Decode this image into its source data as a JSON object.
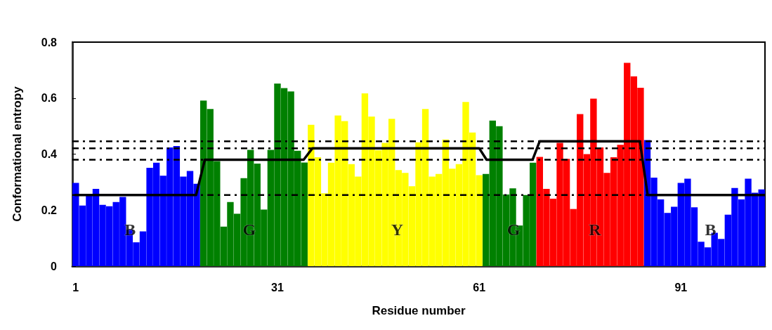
{
  "chart_data": {
    "type": "bar",
    "xlabel": "Residue number",
    "ylabel": "Conformational entropy",
    "xlim": [
      0.5,
      103.5
    ],
    "xticks": [
      1,
      31,
      61,
      91
    ],
    "ylim": [
      0,
      0.8
    ],
    "yticks": [
      0,
      0.2,
      0.4,
      0.6,
      0.8
    ],
    "grid": false,
    "marker": "none",
    "series": [
      {
        "x": [
          1,
          2,
          3,
          4,
          5,
          6,
          7,
          8,
          9,
          10,
          11,
          12,
          13,
          14,
          15,
          16,
          17,
          18,
          19,
          20,
          21,
          22,
          23,
          24,
          25,
          26,
          27,
          28,
          29,
          30,
          31,
          32,
          33,
          34,
          35,
          36,
          37,
          38,
          39,
          40,
          41,
          42,
          43,
          44,
          45,
          46,
          47,
          48,
          49,
          50,
          51,
          52,
          53,
          54,
          55,
          56,
          57,
          58,
          59,
          60,
          61,
          62,
          63,
          64,
          65,
          66,
          67,
          68,
          69,
          70,
          71,
          72,
          73,
          74,
          75,
          76,
          77,
          78,
          79,
          80,
          81,
          82,
          83,
          84,
          85,
          86,
          87,
          88,
          89,
          90,
          91,
          92,
          93,
          94,
          95,
          96,
          97,
          98,
          99,
          100,
          101,
          102,
          103
        ],
        "values": [
          0.297,
          0.216,
          0.256,
          0.276,
          0.219,
          0.214,
          0.229,
          0.247,
          0.13,
          0.085,
          0.124,
          0.351,
          0.369,
          0.323,
          0.424,
          0.429,
          0.32,
          0.34,
          0.294,
          0.591,
          0.561,
          0.375,
          0.141,
          0.229,
          0.187,
          0.314,
          0.415,
          0.366,
          0.202,
          0.415,
          0.652,
          0.636,
          0.624,
          0.412,
          0.37,
          0.505,
          0.389,
          0.26,
          0.369,
          0.538,
          0.518,
          0.364,
          0.32,
          0.617,
          0.534,
          0.414,
          0.44,
          0.526,
          0.343,
          0.333,
          0.285,
          0.442,
          0.561,
          0.32,
          0.329,
          0.452,
          0.348,
          0.364,
          0.586,
          0.477,
          0.325,
          0.329,
          0.52,
          0.5,
          0.256,
          0.278,
          0.145,
          0.254,
          0.369,
          0.39,
          0.276,
          0.241,
          0.44,
          0.383,
          0.204,
          0.543,
          0.4,
          0.598,
          0.424,
          0.333,
          0.389,
          0.433,
          0.726,
          0.678,
          0.637,
          0.45,
          0.316,
          0.238,
          0.19,
          0.212,
          0.297,
          0.312,
          0.21,
          0.087,
          0.067,
          0.119,
          0.097,
          0.184,
          0.279,
          0.238,
          0.312,
          0.262,
          0.274
        ],
        "colors": [
          "#0000ff",
          "#0000ff",
          "#0000ff",
          "#0000ff",
          "#0000ff",
          "#0000ff",
          "#0000ff",
          "#0000ff",
          "#0000ff",
          "#0000ff",
          "#0000ff",
          "#0000ff",
          "#0000ff",
          "#0000ff",
          "#0000ff",
          "#0000ff",
          "#0000ff",
          "#0000ff",
          "#0000ff",
          "#008000",
          "#008000",
          "#008000",
          "#008000",
          "#008000",
          "#008000",
          "#008000",
          "#008000",
          "#008000",
          "#008000",
          "#008000",
          "#008000",
          "#008000",
          "#008000",
          "#008000",
          "#008000",
          "#ffff00",
          "#ffff00",
          "#ffff00",
          "#ffff00",
          "#ffff00",
          "#ffff00",
          "#ffff00",
          "#ffff00",
          "#ffff00",
          "#ffff00",
          "#ffff00",
          "#ffff00",
          "#ffff00",
          "#ffff00",
          "#ffff00",
          "#ffff00",
          "#ffff00",
          "#ffff00",
          "#ffff00",
          "#ffff00",
          "#ffff00",
          "#ffff00",
          "#ffff00",
          "#ffff00",
          "#ffff00",
          "#ffff00",
          "#008000",
          "#008000",
          "#008000",
          "#008000",
          "#008000",
          "#008000",
          "#008000",
          "#008000",
          "#ff0000",
          "#ff0000",
          "#ff0000",
          "#ff0000",
          "#ff0000",
          "#ff0000",
          "#ff0000",
          "#ff0000",
          "#ff0000",
          "#ff0000",
          "#ff0000",
          "#ff0000",
          "#ff0000",
          "#ff0000",
          "#ff0000",
          "#ff0000",
          "#0000ff",
          "#0000ff",
          "#0000ff",
          "#0000ff",
          "#0000ff",
          "#0000ff",
          "#0000ff",
          "#0000ff",
          "#0000ff",
          "#0000ff",
          "#0000ff",
          "#0000ff",
          "#0000ff",
          "#0000ff",
          "#0000ff",
          "#0000ff",
          "#0000ff",
          "#0000ff"
        ]
      },
      {
        "type": "line",
        "color": "#000000",
        "x": [
          0.84,
          18.9,
          20.2,
          34.9,
          36.2,
          61.0,
          62.1,
          68.95,
          70.0,
          84.9,
          86.05,
          103.5
        ],
        "values": [
          0.254,
          0.254,
          0.38,
          0.38,
          0.421,
          0.421,
          0.38,
          0.38,
          0.446,
          0.446,
          0.254,
          0.254
        ]
      }
    ],
    "ref_lines": [
      {
        "axis": "y",
        "value": 0.446,
        "line_style": "dashed",
        "color": "#000000"
      },
      {
        "axis": "y",
        "value": 0.421,
        "line_style": "dashed",
        "color": "#000000"
      },
      {
        "axis": "y",
        "value": 0.38,
        "line_style": "dashed",
        "color": "#000000"
      },
      {
        "axis": "y",
        "value": 0.254,
        "line_style": "dashed",
        "color": "#000000"
      }
    ],
    "annotations": [
      {
        "text": "B",
        "x": 9.1,
        "y": 0.13
      },
      {
        "text": "G",
        "x": 26.8,
        "y": 0.13
      },
      {
        "text": "Y",
        "x": 48.8,
        "y": 0.13
      },
      {
        "text": "G",
        "x": 66.1,
        "y": 0.13
      },
      {
        "text": "R",
        "x": 78.2,
        "y": 0.13
      },
      {
        "text": "B",
        "x": 95.4,
        "y": 0.13
      }
    ]
  }
}
